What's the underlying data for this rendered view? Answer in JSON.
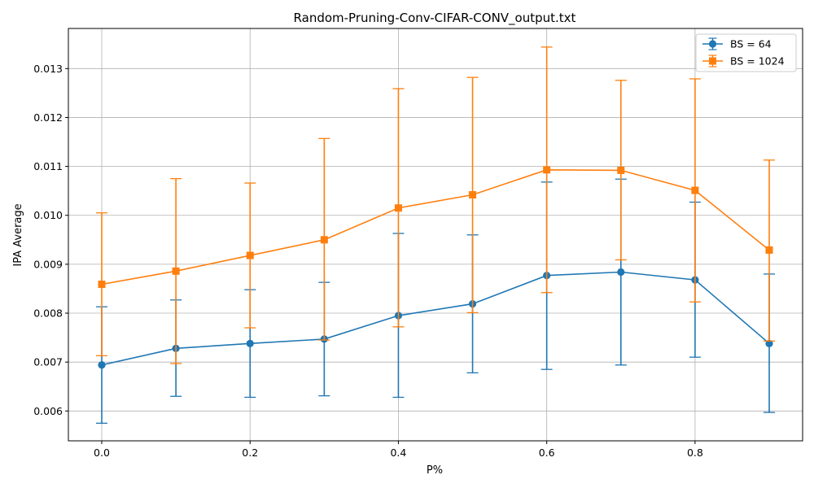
{
  "chart_data": {
    "type": "line",
    "title": "Random-Pruning-Conv-CIFAR-CONV_output.txt",
    "xlabel": "P%",
    "ylabel": "IPA Average",
    "xlim": [
      -0.045,
      0.945
    ],
    "ylim": [
      0.00539,
      0.01382
    ],
    "xticks": [
      0.0,
      0.2,
      0.4,
      0.6,
      0.8
    ],
    "xtick_labels": [
      "0.0",
      "0.2",
      "0.4",
      "0.6",
      "0.8"
    ],
    "yticks": [
      0.006,
      0.007,
      0.008,
      0.009,
      0.01,
      0.011,
      0.012,
      0.013
    ],
    "ytick_labels": [
      "0.006",
      "0.007",
      "0.008",
      "0.009",
      "0.010",
      "0.011",
      "0.012",
      "0.013"
    ],
    "grid": true,
    "legend_position": "top-right",
    "x": [
      0.0,
      0.1,
      0.2,
      0.3,
      0.4,
      0.5,
      0.6,
      0.7,
      0.8,
      0.9
    ],
    "series": [
      {
        "name": "BS = 64",
        "color": "#1f77b4",
        "marker": "circle",
        "values": [
          0.00694,
          0.00728,
          0.00738,
          0.00747,
          0.00795,
          0.00819,
          0.00877,
          0.00884,
          0.00868,
          0.00738
        ],
        "err_lower": [
          0.00575,
          0.0063,
          0.00628,
          0.00631,
          0.00628,
          0.00678,
          0.00685,
          0.00694,
          0.0071,
          0.00597
        ],
        "err_upper": [
          0.00813,
          0.00827,
          0.00848,
          0.00863,
          0.00963,
          0.0096,
          0.01068,
          0.01074,
          0.01027,
          0.0088
        ]
      },
      {
        "name": "BS = 1024",
        "color": "#ff7f0e",
        "marker": "square",
        "values": [
          0.00859,
          0.00886,
          0.00918,
          0.0095,
          0.01015,
          0.01042,
          0.01093,
          0.01092,
          0.01051,
          0.00929
        ],
        "err_lower": [
          0.00713,
          0.00697,
          0.0077,
          0.00745,
          0.00772,
          0.00801,
          0.00842,
          0.00909,
          0.00823,
          0.00743
        ],
        "err_upper": [
          0.01005,
          0.01075,
          0.01066,
          0.01157,
          0.01259,
          0.01282,
          0.01344,
          0.01276,
          0.01279,
          0.01113
        ]
      }
    ]
  }
}
